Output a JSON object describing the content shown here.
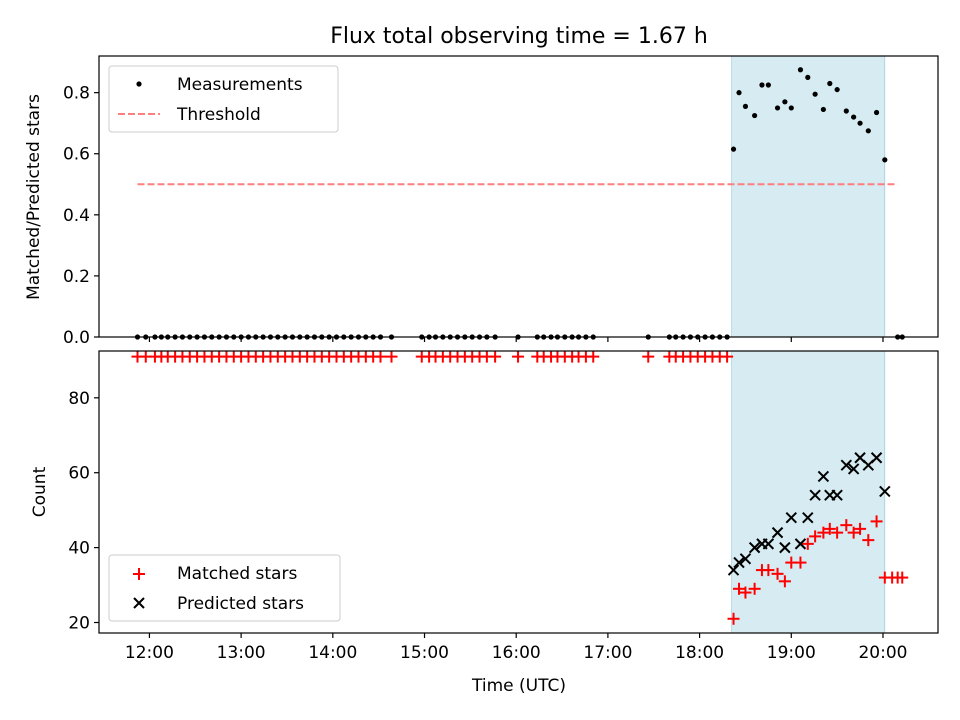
{
  "figure": {
    "title": "Flux total observing time = 1.67 h"
  },
  "chart_data": [
    {
      "type": "scatter",
      "id": "ratio",
      "ylabel": "Matched/Predicted stars",
      "ylim": [
        0,
        0.92
      ],
      "xlim": [
        11.45,
        20.6
      ],
      "yticks": [
        0.0,
        0.2,
        0.4,
        0.6,
        0.8
      ],
      "ytick_labels": [
        "0.0",
        "0.2",
        "0.4",
        "0.6",
        "0.8"
      ],
      "highlight_span": [
        18.35,
        20.02
      ],
      "legend_position": "upper-left",
      "series": [
        {
          "name": "Measurements",
          "marker": "dot",
          "color": "#000000",
          "x": [
            11.87,
            11.96,
            12.06,
            12.13,
            12.2,
            12.28,
            12.36,
            12.44,
            12.52,
            12.6,
            12.68,
            12.76,
            12.84,
            12.92,
            13.0,
            13.08,
            13.16,
            13.24,
            13.32,
            13.4,
            13.48,
            13.56,
            13.64,
            13.72,
            13.8,
            13.88,
            13.96,
            14.04,
            14.12,
            14.2,
            14.28,
            14.36,
            14.44,
            14.52,
            14.64,
            14.97,
            15.05,
            15.12,
            15.2,
            15.28,
            15.36,
            15.44,
            15.52,
            15.6,
            15.68,
            15.77,
            16.02,
            16.23,
            16.3,
            16.38,
            16.45,
            16.53,
            16.61,
            16.68,
            16.76,
            16.84,
            17.44,
            17.67,
            17.74,
            17.82,
            17.9,
            17.98,
            18.06,
            18.14,
            18.22,
            18.3,
            18.37,
            18.43,
            18.5,
            18.6,
            18.68,
            18.75,
            18.85,
            18.93,
            19.0,
            19.1,
            19.18,
            19.26,
            19.35,
            19.42,
            19.5,
            19.6,
            19.68,
            19.75,
            19.84,
            19.93,
            20.02,
            20.16,
            20.21
          ],
          "y": [
            0,
            0,
            0,
            0,
            0,
            0,
            0,
            0,
            0,
            0,
            0,
            0,
            0,
            0,
            0,
            0,
            0,
            0,
            0,
            0,
            0,
            0,
            0,
            0,
            0,
            0,
            0,
            0,
            0,
            0,
            0,
            0,
            0,
            0,
            0,
            0,
            0,
            0,
            0,
            0,
            0,
            0,
            0,
            0,
            0,
            0,
            0,
            0,
            0,
            0,
            0,
            0,
            0,
            0,
            0,
            0,
            0,
            0,
            0,
            0,
            0,
            0,
            0,
            0,
            0,
            0,
            0.615,
            0.8,
            0.755,
            0.725,
            0.825,
            0.825,
            0.75,
            0.77,
            0.75,
            0.875,
            0.85,
            0.795,
            0.745,
            0.83,
            0.81,
            0.74,
            0.72,
            0.7,
            0.675,
            0.735,
            0.58,
            0,
            0
          ]
        },
        {
          "name": "Threshold",
          "marker": "dashed-line",
          "color": "#ff7f7f",
          "x": [
            11.87,
            20.16
          ],
          "y": [
            0.5,
            0.5
          ]
        }
      ]
    },
    {
      "type": "scatter",
      "id": "count",
      "ylabel": "Count",
      "xlabel": "Time (UTC)",
      "ylim": [
        17.2,
        92.5
      ],
      "xlim": [
        11.45,
        20.6
      ],
      "yticks": [
        20,
        40,
        60,
        80
      ],
      "ytick_labels": [
        "20",
        "40",
        "60",
        "80"
      ],
      "xticks": [
        12,
        13,
        14,
        15,
        16,
        17,
        18,
        19,
        20
      ],
      "xtick_labels": [
        "12:00",
        "13:00",
        "14:00",
        "15:00",
        "16:00",
        "17:00",
        "18:00",
        "19:00",
        "20:00"
      ],
      "highlight_span": [
        18.35,
        20.02
      ],
      "legend_position": "lower-left",
      "series": [
        {
          "name": "Matched stars",
          "marker": "plus",
          "color": "#ff0000",
          "x": [
            11.87,
            11.96,
            12.06,
            12.13,
            12.2,
            12.28,
            12.36,
            12.44,
            12.52,
            12.6,
            12.68,
            12.76,
            12.84,
            12.92,
            13.0,
            13.08,
            13.16,
            13.24,
            13.32,
            13.4,
            13.48,
            13.56,
            13.64,
            13.72,
            13.8,
            13.88,
            13.96,
            14.04,
            14.12,
            14.2,
            14.28,
            14.36,
            14.44,
            14.52,
            14.64,
            14.97,
            15.05,
            15.12,
            15.2,
            15.28,
            15.36,
            15.44,
            15.52,
            15.6,
            15.68,
            15.77,
            16.02,
            16.23,
            16.3,
            16.38,
            16.45,
            16.53,
            16.61,
            16.68,
            16.76,
            16.84,
            17.44,
            17.67,
            17.74,
            17.82,
            17.9,
            17.98,
            18.06,
            18.14,
            18.22,
            18.3,
            18.37,
            18.43,
            18.5,
            18.6,
            18.68,
            18.75,
            18.85,
            18.93,
            19.0,
            19.1,
            19.18,
            19.26,
            19.35,
            19.42,
            19.5,
            19.6,
            19.68,
            19.75,
            19.84,
            19.93,
            20.02,
            20.1,
            20.16,
            20.21
          ],
          "y": [
            91,
            91,
            91,
            91,
            91,
            91,
            91,
            91,
            91,
            91,
            91,
            91,
            91,
            91,
            91,
            91,
            91,
            91,
            91,
            91,
            91,
            91,
            91,
            91,
            91,
            91,
            91,
            91,
            91,
            91,
            91,
            91,
            91,
            91,
            91,
            91,
            91,
            91,
            91,
            91,
            91,
            91,
            91,
            91,
            91,
            91,
            91,
            91,
            91,
            91,
            91,
            91,
            91,
            91,
            91,
            91,
            91,
            91,
            91,
            91,
            91,
            91,
            91,
            91,
            91,
            91,
            21,
            29,
            28,
            29,
            34,
            34,
            33,
            31,
            36,
            36,
            41,
            43,
            44,
            45,
            44,
            46,
            44,
            45,
            42,
            47,
            32,
            32,
            32,
            32
          ]
        },
        {
          "name": "Predicted stars",
          "marker": "x",
          "color": "#000000",
          "x": [
            18.37,
            18.43,
            18.5,
            18.6,
            18.68,
            18.75,
            18.85,
            18.93,
            19.0,
            19.1,
            19.18,
            19.26,
            19.35,
            19.42,
            19.5,
            19.6,
            19.68,
            19.75,
            19.84,
            19.93,
            20.02
          ],
          "y": [
            34,
            36,
            37,
            40,
            41,
            41,
            44,
            40,
            48,
            41,
            48,
            54,
            59,
            54,
            54,
            62,
            61,
            64,
            62,
            64,
            55
          ]
        }
      ]
    }
  ]
}
